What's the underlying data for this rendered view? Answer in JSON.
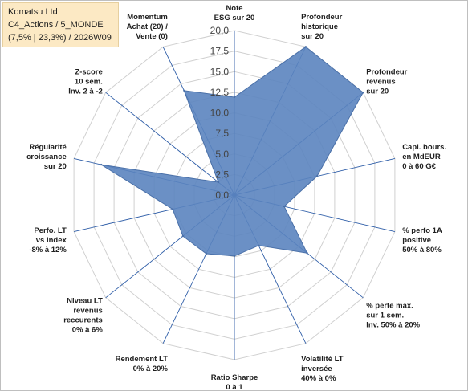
{
  "header": {
    "line1": "Komatsu Ltd",
    "line2": "C4_Actions / 5_MONDE",
    "line3": "(7,5% | 23,3%) / 2026W09"
  },
  "colors": {
    "fill": "#5b84bf",
    "stroke": "#4a70a8",
    "grid": "#d0d0d0",
    "spoke": "#2f5ea8",
    "header_bg": "#fce9c4"
  },
  "chart_data": {
    "type": "radar",
    "rlim": [
      0,
      20
    ],
    "ticks": [
      "0,0",
      "2,5",
      "5,0",
      "7,5",
      "10,0",
      "12,5",
      "15,0",
      "17,5",
      "20,0"
    ],
    "axes": [
      [
        "Note",
        "ESG sur 20"
      ],
      [
        "Profondeur",
        "historique",
        "sur 20"
      ],
      [
        "Profondeur",
        "revenus",
        "sur 20"
      ],
      [
        "Capi. bours.",
        "en MdEUR",
        "0 à 60 G€"
      ],
      [
        "% perfo 1A",
        "positive",
        "50% à 80%"
      ],
      [
        "% perte max.",
        "sur 1 sem.",
        "Inv. 50% à 20%"
      ],
      [
        "Volatilité LT",
        "inversée",
        "40% à 0%"
      ],
      [
        "Ratio Sharpe",
        "0 à 1"
      ],
      [
        "Rendement LT",
        "0% à 20%"
      ],
      [
        "Niveau LT",
        "revenus",
        "reccurents",
        "0% à 6%"
      ],
      [
        "Perfo. LT",
        "vs index",
        "-8% à 12%"
      ],
      [
        "Régularité",
        "croissance",
        "sur 20"
      ],
      [
        "Z-score",
        "10 sem.",
        "Inv. 2 à -2"
      ],
      [
        "Momentum",
        "Achat (20) /",
        "Vente (0)"
      ]
    ],
    "values": [
      11.9,
      20.0,
      20.0,
      10.3,
      6.2,
      11.3,
      6.8,
      7.4,
      7.9,
      8.0,
      7.7,
      16.6,
      2.5,
      14.1
    ]
  }
}
